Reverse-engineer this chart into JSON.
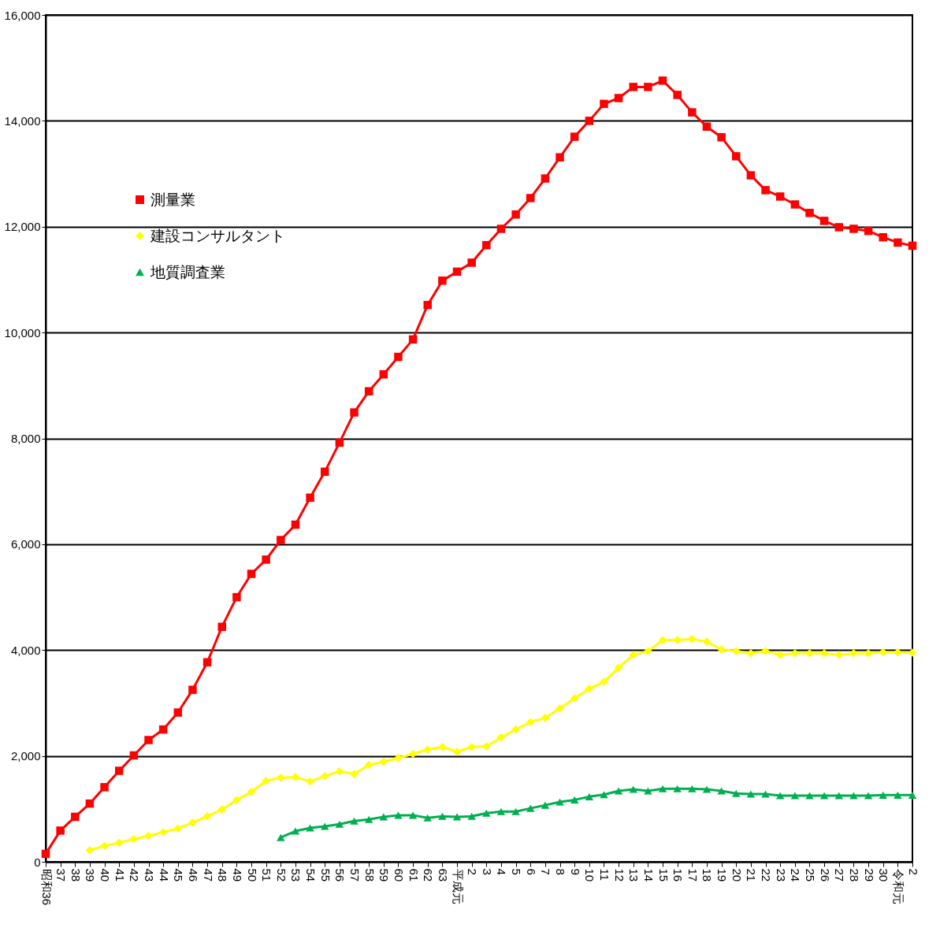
{
  "chart_data": {
    "type": "line",
    "categories": [
      "昭和36",
      "37",
      "38",
      "39",
      "40",
      "41",
      "42",
      "43",
      "44",
      "45",
      "46",
      "47",
      "48",
      "49",
      "50",
      "51",
      "52",
      "53",
      "54",
      "55",
      "56",
      "57",
      "58",
      "59",
      "60",
      "61",
      "62",
      "63",
      "平成元",
      "2",
      "3",
      "4",
      "5",
      "6",
      "7",
      "8",
      "9",
      "10",
      "11",
      "12",
      "13",
      "14",
      "15",
      "16",
      "17",
      "18",
      "19",
      "20",
      "21",
      "22",
      "23",
      "24",
      "25",
      "26",
      "27",
      "28",
      "29",
      "30",
      "令和元",
      "2"
    ],
    "series": [
      {
        "name": "測量業",
        "color": "#ff0000",
        "marker": "square",
        "values": [
          150,
          590,
          850,
          1100,
          1410,
          1720,
          2010,
          2300,
          2500,
          2820,
          3250,
          3770,
          4440,
          5000,
          5440,
          5710,
          6080,
          6370,
          6880,
          7370,
          7920,
          8490,
          8890,
          9210,
          9540,
          9870,
          10520,
          10980,
          11150,
          11320,
          11650,
          11960,
          12230,
          12540,
          12910,
          13310,
          13700,
          14000,
          14320,
          14430,
          14640,
          14640,
          14760,
          14490,
          14160,
          13890,
          13690,
          13330,
          12970,
          12690,
          12570,
          12420,
          12260,
          12110,
          11990,
          11960,
          11920,
          11800,
          11700,
          11640
        ]
      },
      {
        "name": "建設コンサルタント",
        "color": "#ffff00",
        "marker": "diamond",
        "values": [
          null,
          null,
          null,
          220,
          300,
          360,
          430,
          490,
          560,
          630,
          740,
          860,
          990,
          1170,
          1320,
          1530,
          1590,
          1600,
          1520,
          1620,
          1710,
          1660,
          1830,
          1890,
          1960,
          2040,
          2120,
          2170,
          2080,
          2170,
          2180,
          2350,
          2500,
          2640,
          2720,
          2900,
          3090,
          3270,
          3400,
          3670,
          3910,
          3980,
          4190,
          4190,
          4210,
          4160,
          4010,
          3980,
          3940,
          3980,
          3910,
          3940,
          3940,
          3940,
          3910,
          3940,
          3940,
          3960,
          3960,
          3950
        ]
      },
      {
        "name": "地質調査業",
        "color": "#00b050",
        "marker": "triangle",
        "values": [
          null,
          null,
          null,
          null,
          null,
          null,
          null,
          null,
          null,
          null,
          null,
          null,
          null,
          null,
          null,
          null,
          460,
          580,
          640,
          670,
          710,
          770,
          800,
          850,
          880,
          880,
          830,
          860,
          850,
          860,
          920,
          950,
          950,
          1010,
          1070,
          1130,
          1170,
          1230,
          1270,
          1340,
          1370,
          1340,
          1380,
          1380,
          1380,
          1370,
          1340,
          1290,
          1280,
          1280,
          1250,
          1250,
          1250,
          1250,
          1250,
          1250,
          1250,
          1260,
          1260,
          1260
        ]
      }
    ],
    "ylim": [
      0,
      16000
    ],
    "yticks": [
      0,
      {
        "value": 2000,
        "label": "2,000"
      },
      {
        "value": 4000,
        "label": "4,000"
      },
      {
        "value": 6000,
        "label": "6,000"
      },
      {
        "value": 8000,
        "label": "8,000"
      },
      {
        "value": 10000,
        "label": "10,000"
      },
      {
        "value": 12000,
        "label": "12,000"
      },
      {
        "value": 14000,
        "label": "14,000"
      },
      {
        "value": 16000,
        "label": "16,000"
      }
    ],
    "grid": "y",
    "legend": "top left",
    "line_style": "solid"
  }
}
